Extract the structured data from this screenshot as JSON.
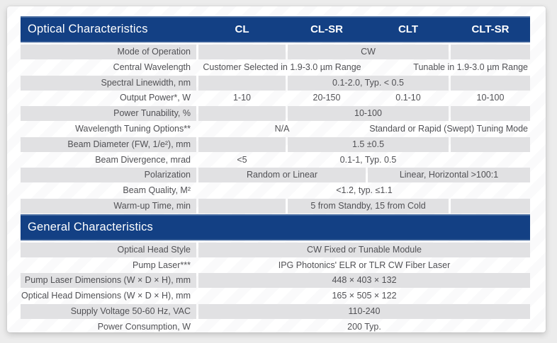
{
  "theme": {
    "accent_blue": "#134084",
    "row_gray": "#e1e1e3",
    "text_color": "#515155",
    "page_bg": "#ececec",
    "card_bg": "#ffffff"
  },
  "optical": {
    "title": "Optical Characteristics",
    "columns": [
      "CL",
      "CL-SR",
      "CLT",
      "CLT-SR"
    ],
    "rows": [
      {
        "label": "Mode of Operation",
        "value": "CW"
      },
      {
        "label": "Central Wavelength",
        "left": "Customer Selected in 1.9-3.0 µm Range",
        "right": "Tunable in 1.9-3.0 µm Range"
      },
      {
        "label": "Spectral Linewidth, nm",
        "value": "0.1-2.0, Typ. < 0.5"
      },
      {
        "label": "Output Power*, W",
        "values": [
          "1-10",
          "20-150",
          "0.1-10",
          "10-100"
        ]
      },
      {
        "label": "Power Tunability, %",
        "value": "10-100"
      },
      {
        "label": "Wavelength Tuning Options**",
        "left": "N/A",
        "right": "Standard or Rapid (Swept) Tuning Mode"
      },
      {
        "label": "Beam Diameter (FW, 1/e²), mm",
        "value": "1.5 ±0.5"
      },
      {
        "label": "Beam Divergence, mrad",
        "first": "<5",
        "value": "0.1-1, Typ. 0.5"
      },
      {
        "label": "Polarization",
        "left": "Random or Linear",
        "right": "Linear, Horizontal >100:1"
      },
      {
        "label": "Beam Quality, M²",
        "value": "<1.2, typ. ≤1.1"
      },
      {
        "label": "Warm-up Time, min",
        "value": "5 from Standby, 15 from Cold"
      }
    ]
  },
  "general": {
    "title": "General Characteristics",
    "rows": [
      {
        "label": "Optical Head Style",
        "value": "CW Fixed or Tunable Module"
      },
      {
        "label": "Pump Laser***",
        "value": "IPG Photonics' ELR or TLR CW Fiber Laser"
      },
      {
        "label": "Pump Laser Dimensions (W × D × H), mm",
        "value": "448 × 403 × 132"
      },
      {
        "label": "Optical Head Dimensions (W × D × H), mm",
        "value": "165 × 505 × 122"
      },
      {
        "label": "Supply Voltage 50-60 Hz, VAC",
        "value": "110-240"
      },
      {
        "label": "Power Consumption, W",
        "value": "200 Typ."
      }
    ]
  }
}
